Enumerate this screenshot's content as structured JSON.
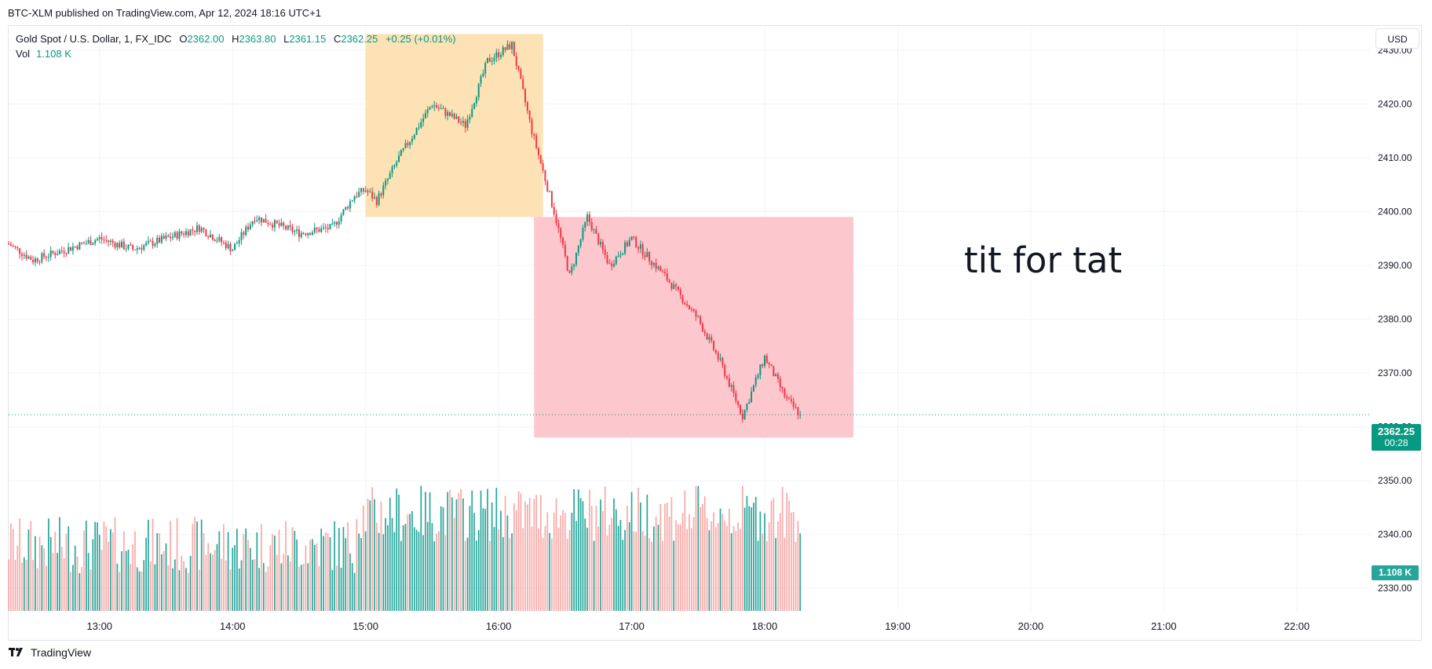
{
  "header": {
    "published": "BTC-XLM published on TradingView.com, Apr 12, 2024 18:16 UTC+1"
  },
  "legend": {
    "symbol": "Gold Spot / U.S. Dollar, 1, FX_IDC",
    "open_key": "O",
    "open": "2362.00",
    "high_key": "H",
    "high": "2363.80",
    "low_key": "L",
    "low": "2361.15",
    "close_key": "C",
    "close": "2362.25",
    "change": "+0.25 (+0.01%)",
    "volume_label": "Vol",
    "volume_value": "1.108 K"
  },
  "currency_button": {
    "label": "USD"
  },
  "last_price": {
    "price": "2362.25",
    "countdown": "00:28"
  },
  "volume_tag": {
    "label": "1.108 K"
  },
  "annotation": {
    "text": "tit for tat"
  },
  "footer": {
    "brand": "TradingView",
    "logo_icon": "tradingview-logo-icon"
  },
  "colors": {
    "up": "#089981",
    "down": "#f23645",
    "vol_up": "#26a69a",
    "vol_down": "#f7a9a7",
    "box_orange": "#fde2b6",
    "box_pink": "#fcc7cd",
    "grid": "#f0f3fa"
  },
  "chart_data": {
    "type": "candlestick",
    "symbol": "XAUUSD",
    "timeframe": "1",
    "x_ticks": [
      "13:00",
      "14:00",
      "15:00",
      "16:00",
      "17:00",
      "18:00",
      "19:00",
      "20:00",
      "21:00",
      "22:00"
    ],
    "y_ticks": [
      2330,
      2340,
      2350,
      2360,
      2370,
      2380,
      2390,
      2400,
      2410,
      2420,
      2430
    ],
    "ylim": [
      2325.5,
      2434.5
    ],
    "x_range": [
      "12:19",
      "22:33"
    ],
    "grid": true,
    "price_path": [
      {
        "t": "12:19",
        "p": 2394
      },
      {
        "t": "12:30",
        "p": 2391
      },
      {
        "t": "12:45",
        "p": 2393
      },
      {
        "t": "13:00",
        "p": 2395
      },
      {
        "t": "13:15",
        "p": 2393
      },
      {
        "t": "13:30",
        "p": 2395
      },
      {
        "t": "13:45",
        "p": 2397
      },
      {
        "t": "14:00",
        "p": 2393
      },
      {
        "t": "14:10",
        "p": 2399
      },
      {
        "t": "14:30",
        "p": 2396
      },
      {
        "t": "14:45",
        "p": 2397
      },
      {
        "t": "14:55",
        "p": 2403
      },
      {
        "t": "15:00",
        "p": 2404
      },
      {
        "t": "15:05",
        "p": 2402
      },
      {
        "t": "15:15",
        "p": 2410
      },
      {
        "t": "15:30",
        "p": 2420
      },
      {
        "t": "15:45",
        "p": 2416
      },
      {
        "t": "15:55",
        "p": 2428
      },
      {
        "t": "16:06",
        "p": 2431
      },
      {
        "t": "16:15",
        "p": 2415
      },
      {
        "t": "16:25",
        "p": 2400
      },
      {
        "t": "16:32",
        "p": 2388
      },
      {
        "t": "16:40",
        "p": 2399
      },
      {
        "t": "16:50",
        "p": 2390
      },
      {
        "t": "17:00",
        "p": 2395
      },
      {
        "t": "17:15",
        "p": 2388
      },
      {
        "t": "17:30",
        "p": 2380
      },
      {
        "t": "17:40",
        "p": 2372
      },
      {
        "t": "17:50",
        "p": 2362
      },
      {
        "t": "18:00",
        "p": 2373
      },
      {
        "t": "18:10",
        "p": 2365
      },
      {
        "t": "18:16",
        "p": 2362.25
      }
    ],
    "volume_scale": {
      "max_label": "1.108 K"
    },
    "last_price": 2362.25,
    "zones": [
      {
        "color": "orange",
        "from": "15:00",
        "to": "16:20",
        "low": 2399,
        "high": 2433
      },
      {
        "color": "pink",
        "from": "16:16",
        "to": "18:40",
        "low": 2358,
        "high": 2399
      }
    ]
  }
}
